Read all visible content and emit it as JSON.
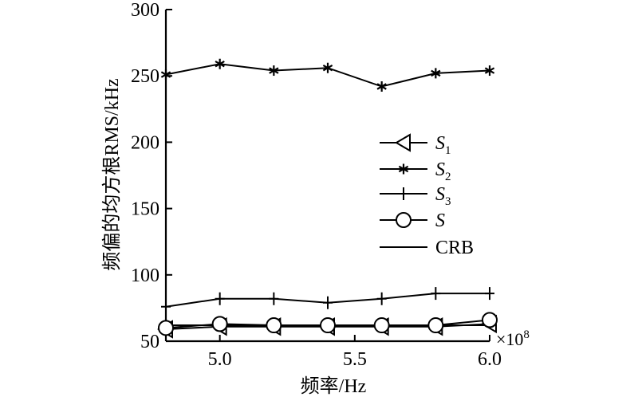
{
  "chart_data": {
    "type": "line",
    "title": "",
    "xlabel": "频率/Hz",
    "ylabel": "频偏的均方根RMS/kHz",
    "x_multiplier": "×10",
    "x_multiplier_exp": "8",
    "x": [
      4.8,
      5.0,
      5.2,
      5.4,
      5.6,
      5.8,
      6.0
    ],
    "xlim": [
      4.8,
      6.0
    ],
    "ylim": [
      50,
      300
    ],
    "xticks": [
      5.0,
      5.5,
      6.0
    ],
    "xtick_labels": [
      "5.0",
      "5.5",
      "6.0"
    ],
    "yticks": [
      50,
      100,
      150,
      200,
      250,
      300
    ],
    "ytick_labels": [
      "50",
      "100",
      "150",
      "200",
      "250",
      "300"
    ],
    "grid": false,
    "legend_position": "middle-right",
    "series": [
      {
        "name": "S",
        "sub": "1",
        "marker": "triangle-left",
        "values": [
          59,
          61,
          61,
          61,
          61,
          61,
          63
        ]
      },
      {
        "name": "S",
        "sub": "2",
        "marker": "star",
        "values": [
          251,
          259,
          254,
          256,
          242,
          252,
          254
        ]
      },
      {
        "name": "S",
        "sub": "3",
        "marker": "plus",
        "values": [
          76,
          82,
          82,
          79,
          82,
          86,
          86
        ]
      },
      {
        "name": "S",
        "sub": "",
        "marker": "circle",
        "values": [
          60,
          63,
          62,
          62,
          62,
          62,
          66
        ]
      },
      {
        "name": "CRB",
        "sub": "",
        "marker": "none",
        "values": [
          62,
          62,
          62,
          62,
          62,
          62,
          62
        ]
      }
    ]
  }
}
